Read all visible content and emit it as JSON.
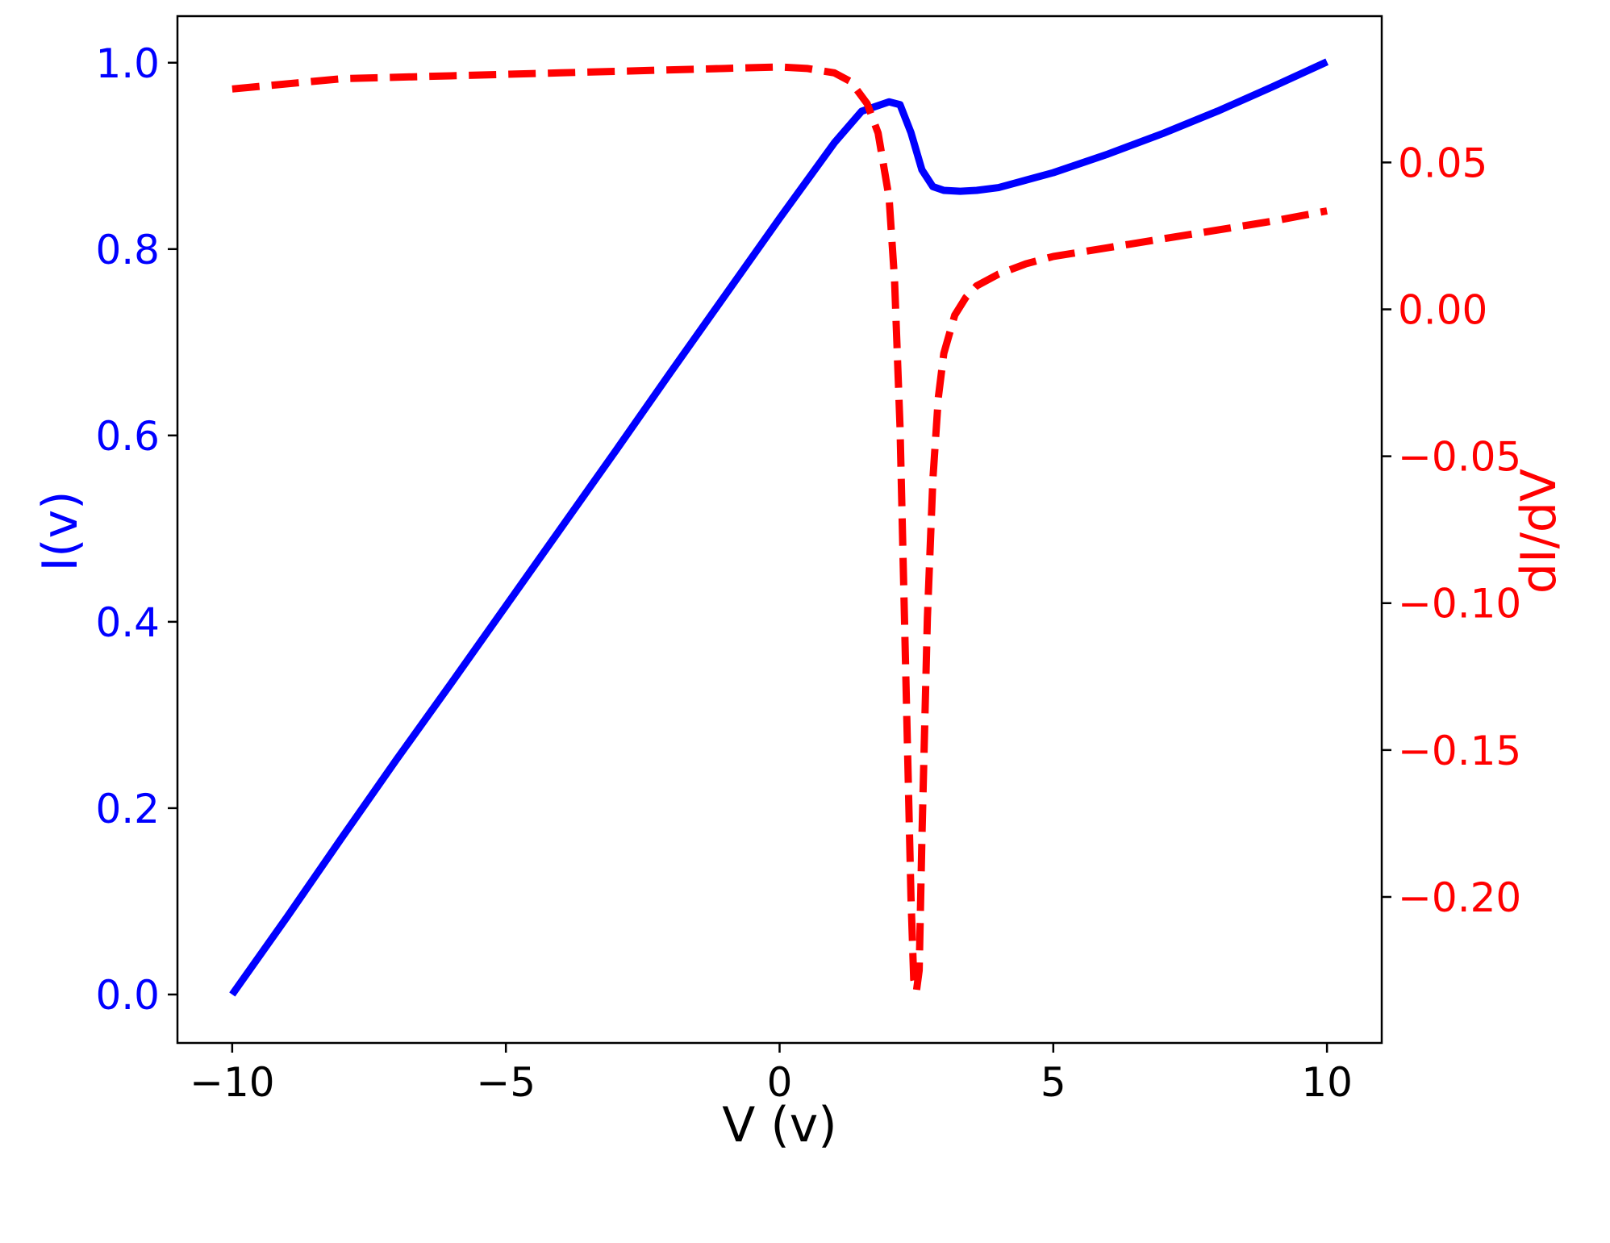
{
  "chart_data": {
    "type": "line",
    "xlabel": "V (v)",
    "ylabel_left": "I(v)",
    "ylabel_right": "dI/dV",
    "xlim": [
      -11,
      11
    ],
    "ylim_left": [
      -0.052,
      1.05
    ],
    "ylim_right": [
      -0.2497,
      0.0998
    ],
    "x_ticks": [
      -10,
      -5,
      0,
      5,
      10
    ],
    "x_tick_labels": [
      "−10",
      "−5",
      "0",
      "5",
      "10"
    ],
    "y_left_ticks": [
      0.0,
      0.2,
      0.4,
      0.6,
      0.8,
      1.0
    ],
    "y_left_tick_labels": [
      "0.0",
      "0.2",
      "0.4",
      "0.6",
      "0.8",
      "1.0"
    ],
    "y_right_ticks": [
      -0.2,
      -0.15,
      -0.1,
      -0.05,
      0.0,
      0.05
    ],
    "y_right_tick_labels": [
      "−0.20",
      "−0.15",
      "−0.10",
      "−0.05",
      "0.00",
      "0.05"
    ],
    "grid": false,
    "colors": {
      "left_axis": "#0000ff",
      "right_axis": "#ff0000",
      "x_axis": "#000000",
      "frame": "#000000"
    },
    "series": [
      {
        "axis": "left",
        "style": "solid",
        "color": "#0000ff",
        "x": [
          -10,
          -9,
          -8,
          -7,
          -6,
          -5,
          -4,
          -3,
          -2,
          -1,
          0,
          1,
          1.5,
          2.0,
          2.2,
          2.4,
          2.6,
          2.8,
          3.0,
          3.3,
          3.6,
          4,
          5,
          6,
          7,
          8,
          9,
          10
        ],
        "y": [
          0.0,
          0.083,
          0.168,
          0.252,
          0.334,
          0.417,
          0.5,
          0.583,
          0.667,
          0.75,
          0.833,
          0.914,
          0.948,
          0.958,
          0.955,
          0.925,
          0.885,
          0.867,
          0.863,
          0.862,
          0.863,
          0.866,
          0.882,
          0.902,
          0.924,
          0.948,
          0.974,
          1.001
        ]
      },
      {
        "axis": "right",
        "style": "dashed",
        "color": "#ff0000",
        "x": [
          -10,
          -8,
          -6,
          -4,
          -2,
          -1,
          0,
          0.5,
          1.0,
          1.3,
          1.6,
          1.8,
          2.0,
          2.1,
          2.2,
          2.3,
          2.4,
          2.45,
          2.5,
          2.55,
          2.6,
          2.7,
          2.8,
          2.9,
          3.0,
          3.2,
          3.4,
          3.6,
          4.0,
          4.5,
          5,
          6,
          7,
          8,
          9,
          10
        ],
        "y": [
          0.075,
          0.0785,
          0.0795,
          0.0805,
          0.0815,
          0.082,
          0.0825,
          0.082,
          0.0805,
          0.0775,
          0.07,
          0.06,
          0.038,
          0.01,
          -0.04,
          -0.12,
          -0.2,
          -0.228,
          -0.232,
          -0.225,
          -0.18,
          -0.105,
          -0.058,
          -0.03,
          -0.015,
          -0.002,
          0.004,
          0.008,
          0.012,
          0.0155,
          0.018,
          0.021,
          0.024,
          0.027,
          0.03,
          0.0335
        ]
      }
    ]
  }
}
